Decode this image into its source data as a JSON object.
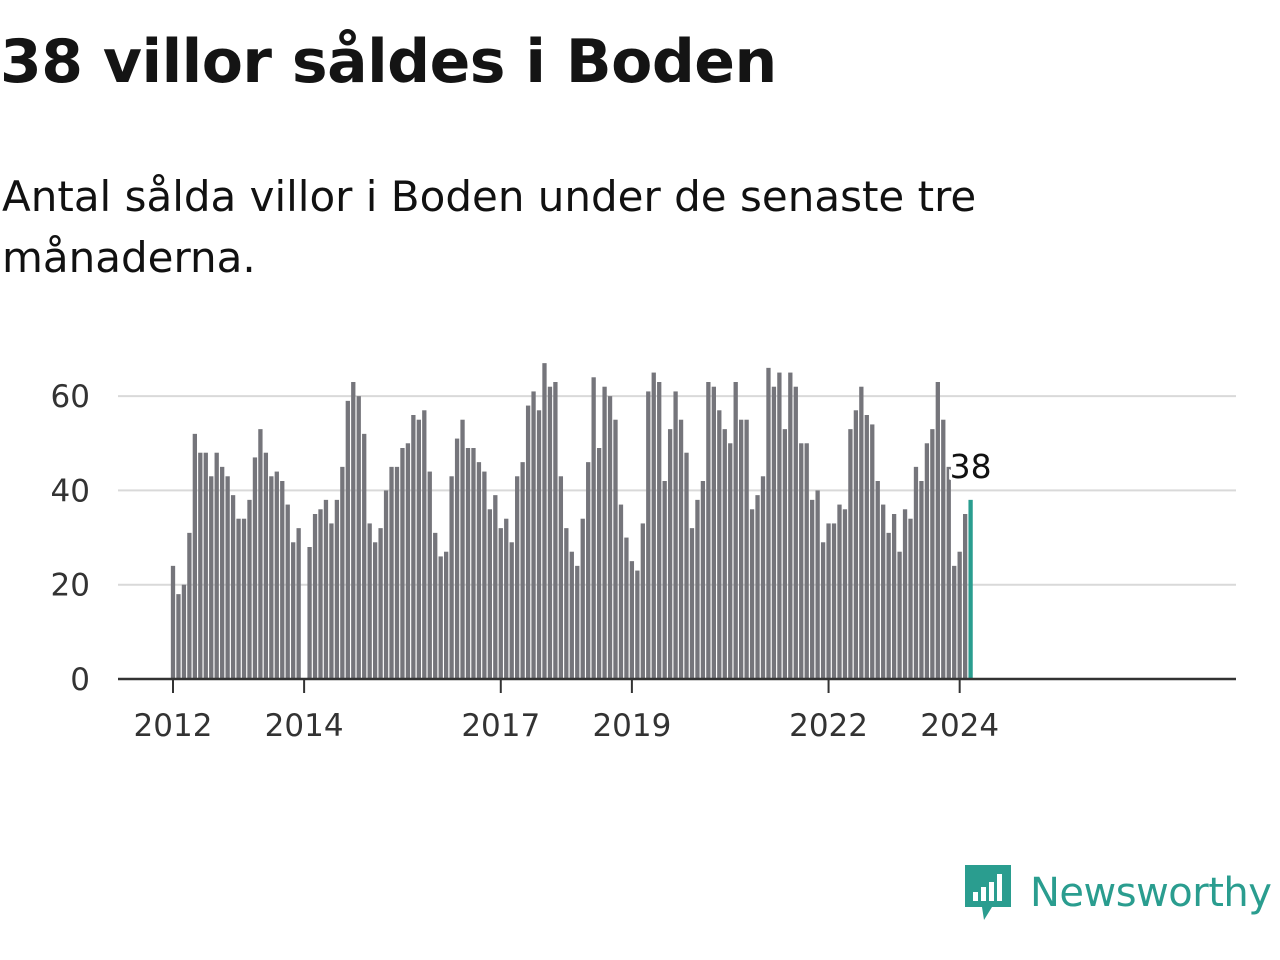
{
  "title": "38 villor såldes i Boden",
  "subtitle": "Antal sålda villor i Boden under de senaste tre månaderna.",
  "brand": {
    "name": "Newsworthy",
    "color": "#2a9d8f",
    "icon": "bar-chart-speech-icon"
  },
  "colors": {
    "bar": "#75757b",
    "highlight": "#2a9d8f",
    "grid": "#d9d9d9",
    "axis": "#333333"
  },
  "chart_data": {
    "type": "bar",
    "x_start": {
      "year": 2012,
      "month": 1
    },
    "values": [
      24,
      18,
      20,
      31,
      52,
      48,
      48,
      43,
      48,
      45,
      43,
      39,
      34,
      34,
      38,
      47,
      53,
      48,
      43,
      44,
      42,
      37,
      29,
      32,
      null,
      28,
      35,
      36,
      38,
      33,
      38,
      45,
      59,
      63,
      60,
      52,
      33,
      29,
      32,
      40,
      45,
      45,
      49,
      50,
      56,
      55,
      57,
      44,
      31,
      26,
      27,
      43,
      51,
      55,
      49,
      49,
      46,
      44,
      36,
      39,
      32,
      34,
      29,
      43,
      46,
      58,
      61,
      57,
      67,
      62,
      63,
      43,
      32,
      27,
      24,
      34,
      46,
      64,
      49,
      62,
      60,
      55,
      37,
      30,
      25,
      23,
      33,
      61,
      65,
      63,
      42,
      53,
      61,
      55,
      48,
      32,
      38,
      42,
      63,
      62,
      57,
      53,
      50,
      63,
      55,
      55,
      36,
      39,
      43,
      66,
      62,
      65,
      53,
      65,
      62,
      50,
      50,
      38,
      40,
      29,
      33,
      33,
      37,
      36,
      53,
      57,
      62,
      56,
      54,
      42,
      37,
      31,
      35,
      27,
      36,
      34,
      45,
      42,
      50,
      53,
      63,
      55,
      45,
      24,
      27,
      35,
      38
    ],
    "highlight_last": true,
    "highlight_label": "38",
    "ylim": [
      0,
      70
    ],
    "yticks": [
      0,
      20,
      40,
      60
    ],
    "xtick_labels": [
      "2012",
      "2014",
      "2017",
      "2019",
      "2022",
      "2024"
    ],
    "xtick_months": [
      0,
      24,
      60,
      84,
      120,
      144
    ],
    "grid": true,
    "title": "",
    "xlabel": "",
    "ylabel": ""
  }
}
